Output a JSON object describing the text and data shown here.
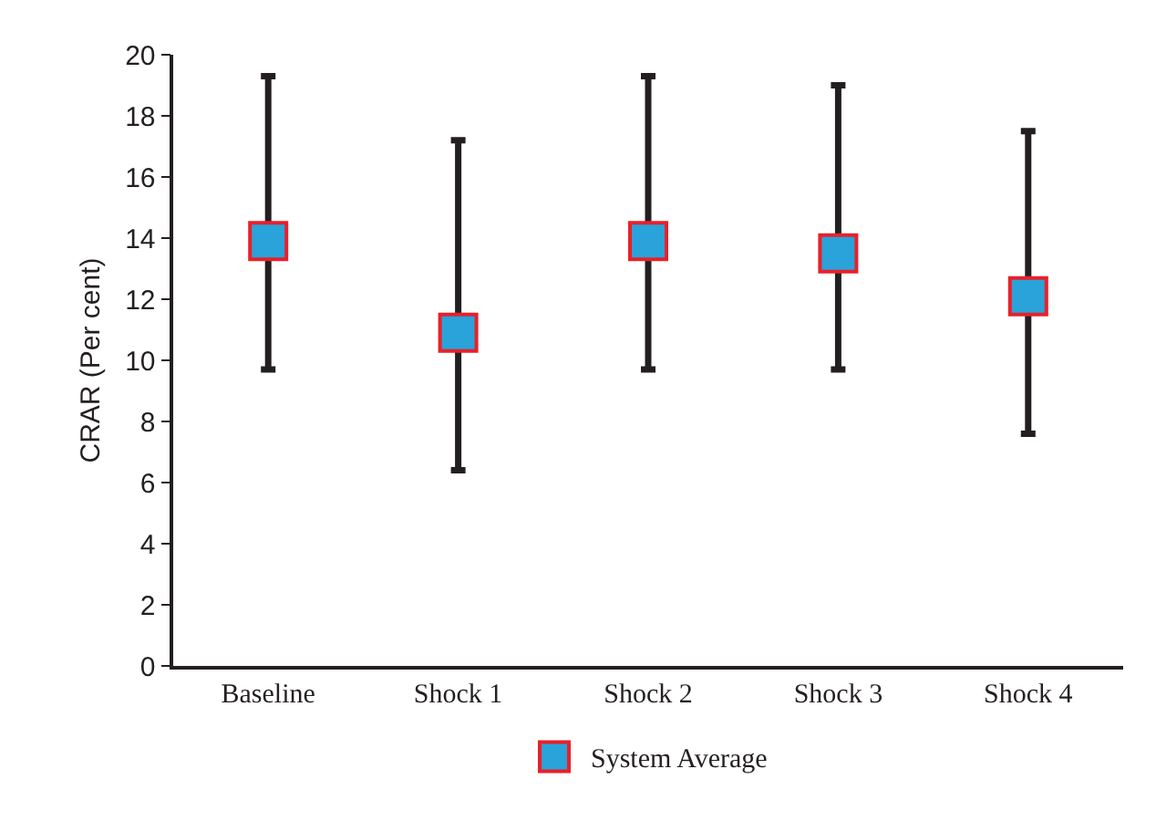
{
  "chart_data": {
    "type": "scatter",
    "ylabel": "CRAR (Per cent)",
    "categories": [
      "Baseline",
      "Shock 1",
      "Shock 2",
      "Shock 3",
      "Shock 4"
    ],
    "series": [
      {
        "name": "System Average",
        "color": "#29a3d9",
        "values": [
          13.9,
          10.9,
          13.9,
          13.5,
          12.1
        ],
        "errors": [
          [
            9.7,
            19.3
          ],
          [
            6.4,
            17.2
          ],
          [
            9.7,
            19.3
          ],
          [
            9.7,
            19.0
          ],
          [
            7.6,
            17.5
          ]
        ]
      }
    ],
    "ylim": [
      0,
      20
    ],
    "yticks": [
      0,
      2,
      4,
      6,
      8,
      10,
      12,
      14,
      16,
      18,
      20
    ],
    "grid": false,
    "legend": "bottom",
    "marker": "square"
  }
}
